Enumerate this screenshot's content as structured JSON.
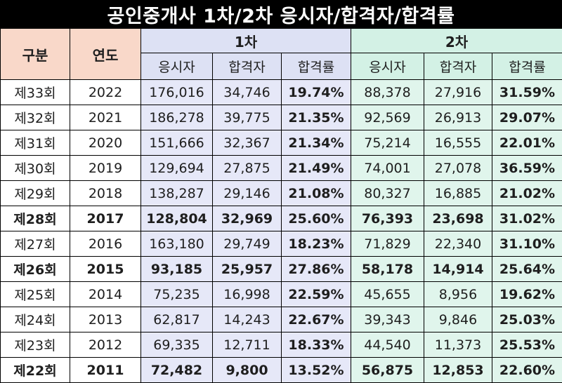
{
  "title": "공인중개사 1차/2차 응시자/합격자/합격률",
  "header": {
    "category": "구분",
    "year": "연도",
    "group1": "1차",
    "group2": "2차",
    "sub": [
      "응시자",
      "합격자",
      "합격률"
    ]
  },
  "rows": [
    {
      "round": "제33회",
      "year": "2022",
      "v": [
        "176,016",
        "34,746",
        "19.74%",
        "88,378",
        "27,916",
        "31.59%"
      ],
      "bold": false
    },
    {
      "round": "제32회",
      "year": "2021",
      "v": [
        "186,278",
        "39,775",
        "21.35%",
        "92,569",
        "26,913",
        "29.07%"
      ],
      "bold": false
    },
    {
      "round": "제31회",
      "year": "2020",
      "v": [
        "151,666",
        "32,367",
        "21.34%",
        "75,214",
        "16,555",
        "22.01%"
      ],
      "bold": false
    },
    {
      "round": "제30회",
      "year": "2019",
      "v": [
        "129,694",
        "27,875",
        "21.49%",
        "74,001",
        "27,078",
        "36.59%"
      ],
      "bold": false
    },
    {
      "round": "제29회",
      "year": "2018",
      "v": [
        "138,287",
        "29,146",
        "21.08%",
        "80,327",
        "16,885",
        "21.02%"
      ],
      "bold": false
    },
    {
      "round": "제28회",
      "year": "2017",
      "v": [
        "128,804",
        "32,969",
        "25.60%",
        "76,393",
        "23,698",
        "31.02%"
      ],
      "bold": true
    },
    {
      "round": "제27회",
      "year": "2016",
      "v": [
        "163,180",
        "29,749",
        "18.23%",
        "71,829",
        "22,340",
        "31.10%"
      ],
      "bold": false
    },
    {
      "round": "제26회",
      "year": "2015",
      "v": [
        "93,185",
        "25,957",
        "27.86%",
        "58,178",
        "14,914",
        "25.64%"
      ],
      "bold": true
    },
    {
      "round": "제25회",
      "year": "2014",
      "v": [
        "75,235",
        "16,998",
        "22.59%",
        "45,655",
        "8,956",
        "19.62%"
      ],
      "bold": false
    },
    {
      "round": "제24회",
      "year": "2013",
      "v": [
        "62,817",
        "14,243",
        "22.67%",
        "39,343",
        "9,846",
        "25.03%"
      ],
      "bold": false
    },
    {
      "round": "제23회",
      "year": "2012",
      "v": [
        "69,335",
        "12,711",
        "18.33%",
        "44,540",
        "11,373",
        "25.53%"
      ],
      "bold": false
    },
    {
      "round": "제22회",
      "year": "2011",
      "v": [
        "72,482",
        "9,800",
        "13.52%",
        "56,875",
        "12,853",
        "22.60%"
      ],
      "bold": true
    }
  ],
  "colors": {
    "header_label_bg": "#f9d8c9",
    "group1_bg": "#dde1f4",
    "group2_bg": "#d3f1e5",
    "border": "#000000"
  }
}
